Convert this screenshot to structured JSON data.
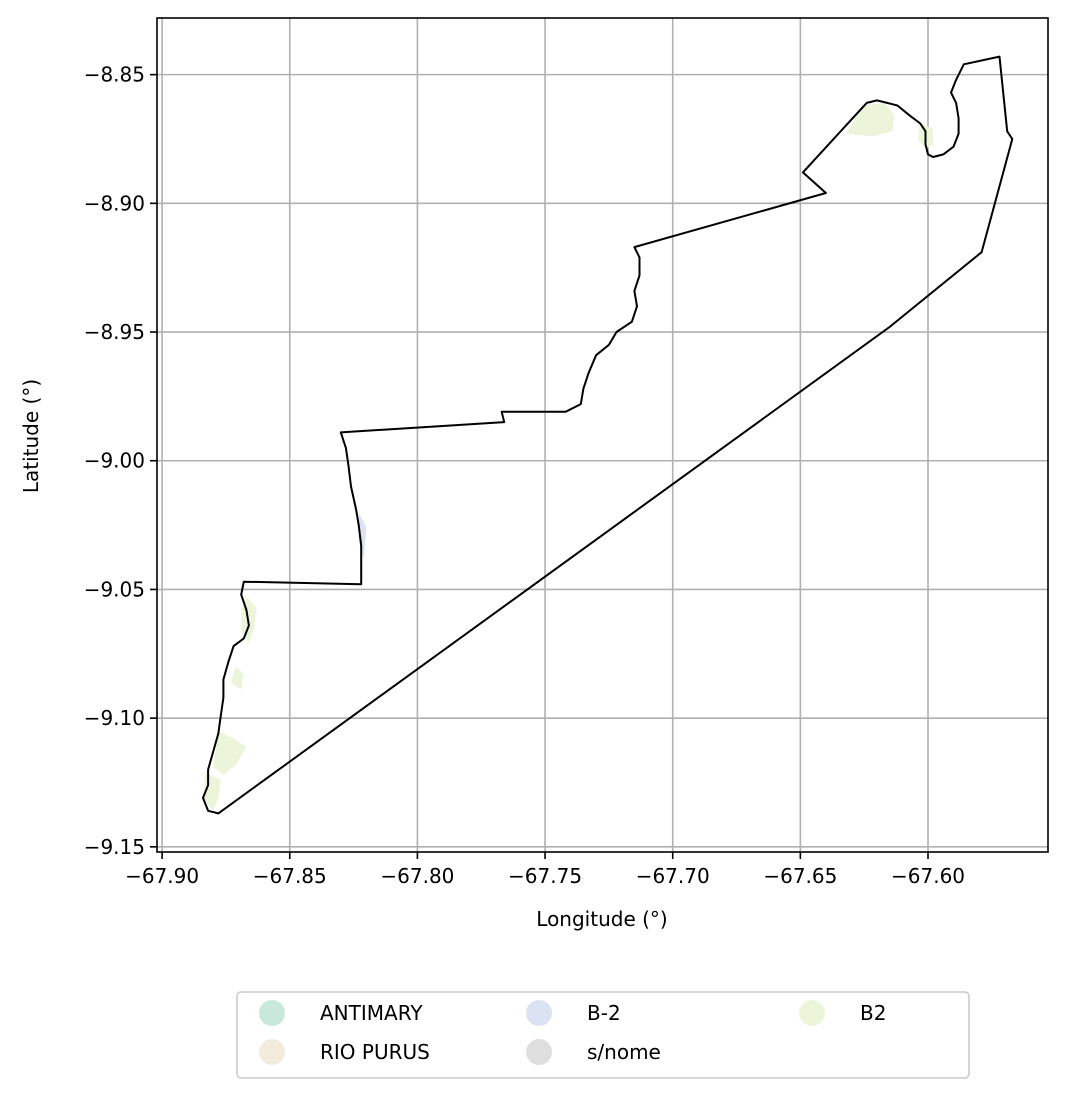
{
  "map": {
    "xlabel": "Longitude (°)",
    "ylabel": "Latitude (°)",
    "xlim": [
      -67.902,
      -67.553
    ],
    "ylim": [
      -9.152,
      -8.828
    ],
    "grid": true,
    "x_ticks": [
      {
        "value": -67.9,
        "label": "−67.90"
      },
      {
        "value": -67.85,
        "label": "−67.85"
      },
      {
        "value": -67.8,
        "label": "−67.80"
      },
      {
        "value": -67.75,
        "label": "−67.75"
      },
      {
        "value": -67.7,
        "label": "−67.70"
      },
      {
        "value": -67.65,
        "label": "−67.65"
      },
      {
        "value": -67.6,
        "label": "−67.60"
      }
    ],
    "y_ticks": [
      {
        "value": -8.85,
        "label": "−8.85"
      },
      {
        "value": -8.9,
        "label": "−8.90"
      },
      {
        "value": -8.95,
        "label": "−8.95"
      },
      {
        "value": -9.0,
        "label": "−9.00"
      },
      {
        "value": -9.05,
        "label": "−9.05"
      },
      {
        "value": -9.1,
        "label": "−9.10"
      },
      {
        "value": -9.15,
        "label": "−9.15"
      }
    ],
    "outline_color": "#000000",
    "boundary": [
      [
        -67.567,
        -8.875
      ],
      [
        -67.569,
        -8.872
      ],
      [
        -67.572,
        -8.843
      ],
      [
        -67.586,
        -8.846
      ],
      [
        -67.589,
        -8.852
      ],
      [
        -67.591,
        -8.857
      ],
      [
        -67.589,
        -8.861
      ],
      [
        -67.588,
        -8.867
      ],
      [
        -67.588,
        -8.873
      ],
      [
        -67.59,
        -8.878
      ],
      [
        -67.594,
        -8.881
      ],
      [
        -67.598,
        -8.882
      ],
      [
        -67.6,
        -8.881
      ],
      [
        -67.601,
        -8.877
      ],
      [
        -67.601,
        -8.872
      ],
      [
        -67.603,
        -8.869
      ],
      [
        -67.607,
        -8.866
      ],
      [
        -67.612,
        -8.862
      ],
      [
        -67.616,
        -8.861
      ],
      [
        -67.62,
        -8.86
      ],
      [
        -67.624,
        -8.861
      ],
      [
        -67.649,
        -8.888
      ],
      [
        -67.64,
        -8.896
      ],
      [
        -67.715,
        -8.917
      ],
      [
        -67.713,
        -8.921
      ],
      [
        -67.713,
        -8.928
      ],
      [
        -67.715,
        -8.934
      ],
      [
        -67.714,
        -8.94
      ],
      [
        -67.716,
        -8.946
      ],
      [
        -67.722,
        -8.95
      ],
      [
        -67.725,
        -8.955
      ],
      [
        -67.73,
        -8.959
      ],
      [
        -67.733,
        -8.966
      ],
      [
        -67.735,
        -8.972
      ],
      [
        -67.736,
        -8.978
      ],
      [
        -67.742,
        -8.981
      ],
      [
        -67.767,
        -8.981
      ],
      [
        -67.766,
        -8.985
      ],
      [
        -67.83,
        -8.989
      ],
      [
        -67.828,
        -8.995
      ],
      [
        -67.827,
        -9.002
      ],
      [
        -67.826,
        -9.01
      ],
      [
        -67.824,
        -9.019
      ],
      [
        -67.823,
        -9.025
      ],
      [
        -67.822,
        -9.033
      ],
      [
        -67.822,
        -9.04
      ],
      [
        -67.822,
        -9.048
      ],
      [
        -67.868,
        -9.047
      ],
      [
        -67.869,
        -9.052
      ],
      [
        -67.867,
        -9.058
      ],
      [
        -67.866,
        -9.064
      ],
      [
        -67.868,
        -9.069
      ],
      [
        -67.872,
        -9.072
      ],
      [
        -67.874,
        -9.078
      ],
      [
        -67.876,
        -9.085
      ],
      [
        -67.876,
        -9.092
      ],
      [
        -67.877,
        -9.099
      ],
      [
        -67.878,
        -9.106
      ],
      [
        -67.88,
        -9.113
      ],
      [
        -67.882,
        -9.12
      ],
      [
        -67.882,
        -9.126
      ],
      [
        -67.884,
        -9.131
      ],
      [
        -67.882,
        -9.136
      ],
      [
        -67.878,
        -9.137
      ],
      [
        -67.615,
        -8.948
      ],
      [
        -67.579,
        -8.919
      ]
    ],
    "patches": [
      {
        "category": "B2",
        "points": [
          [
            -67.632,
            -8.873
          ],
          [
            -67.626,
            -8.862
          ],
          [
            -67.617,
            -8.861
          ],
          [
            -67.613,
            -8.866
          ],
          [
            -67.614,
            -8.872
          ],
          [
            -67.622,
            -8.874
          ]
        ]
      },
      {
        "category": "B2",
        "points": [
          [
            -67.603,
            -8.869
          ],
          [
            -67.598,
            -8.871
          ],
          [
            -67.598,
            -8.877
          ],
          [
            -67.601,
            -8.879
          ],
          [
            -67.604,
            -8.875
          ]
        ]
      },
      {
        "category": "B2",
        "points": [
          [
            -67.867,
            -9.053
          ],
          [
            -67.863,
            -9.057
          ],
          [
            -67.864,
            -9.065
          ],
          [
            -67.866,
            -9.071
          ],
          [
            -67.869,
            -9.066
          ],
          [
            -67.869,
            -9.058
          ]
        ]
      },
      {
        "category": "B2",
        "points": [
          [
            -67.871,
            -9.08
          ],
          [
            -67.868,
            -9.083
          ],
          [
            -67.869,
            -9.089
          ],
          [
            -67.873,
            -9.086
          ]
        ]
      },
      {
        "category": "B2",
        "points": [
          [
            -67.878,
            -9.105
          ],
          [
            -67.872,
            -9.108
          ],
          [
            -67.867,
            -9.111
          ],
          [
            -67.871,
            -9.118
          ],
          [
            -67.876,
            -9.122
          ],
          [
            -67.88,
            -9.119
          ]
        ]
      },
      {
        "category": "B2",
        "points": [
          [
            -67.883,
            -9.121
          ],
          [
            -67.877,
            -9.124
          ],
          [
            -67.878,
            -9.131
          ],
          [
            -67.88,
            -9.136
          ],
          [
            -67.884,
            -9.131
          ]
        ]
      },
      {
        "category": "B-2",
        "points": [
          [
            -67.823,
            -9.02
          ],
          [
            -67.82,
            -9.026
          ],
          [
            -67.821,
            -9.038
          ],
          [
            -67.823,
            -9.031
          ]
        ]
      }
    ],
    "legend": {
      "placement": "bottom-center",
      "entries": [
        {
          "label": "ANTIMARY",
          "color": "#c9e8dc"
        },
        {
          "label": "B-2",
          "color": "#dbe2f1"
        },
        {
          "label": "B2",
          "color": "#ecf5d9"
        },
        {
          "label": "RIO PURUS",
          "color": "#f3ebdc"
        },
        {
          "label": "s/nome",
          "color": "#dedede"
        }
      ]
    }
  }
}
